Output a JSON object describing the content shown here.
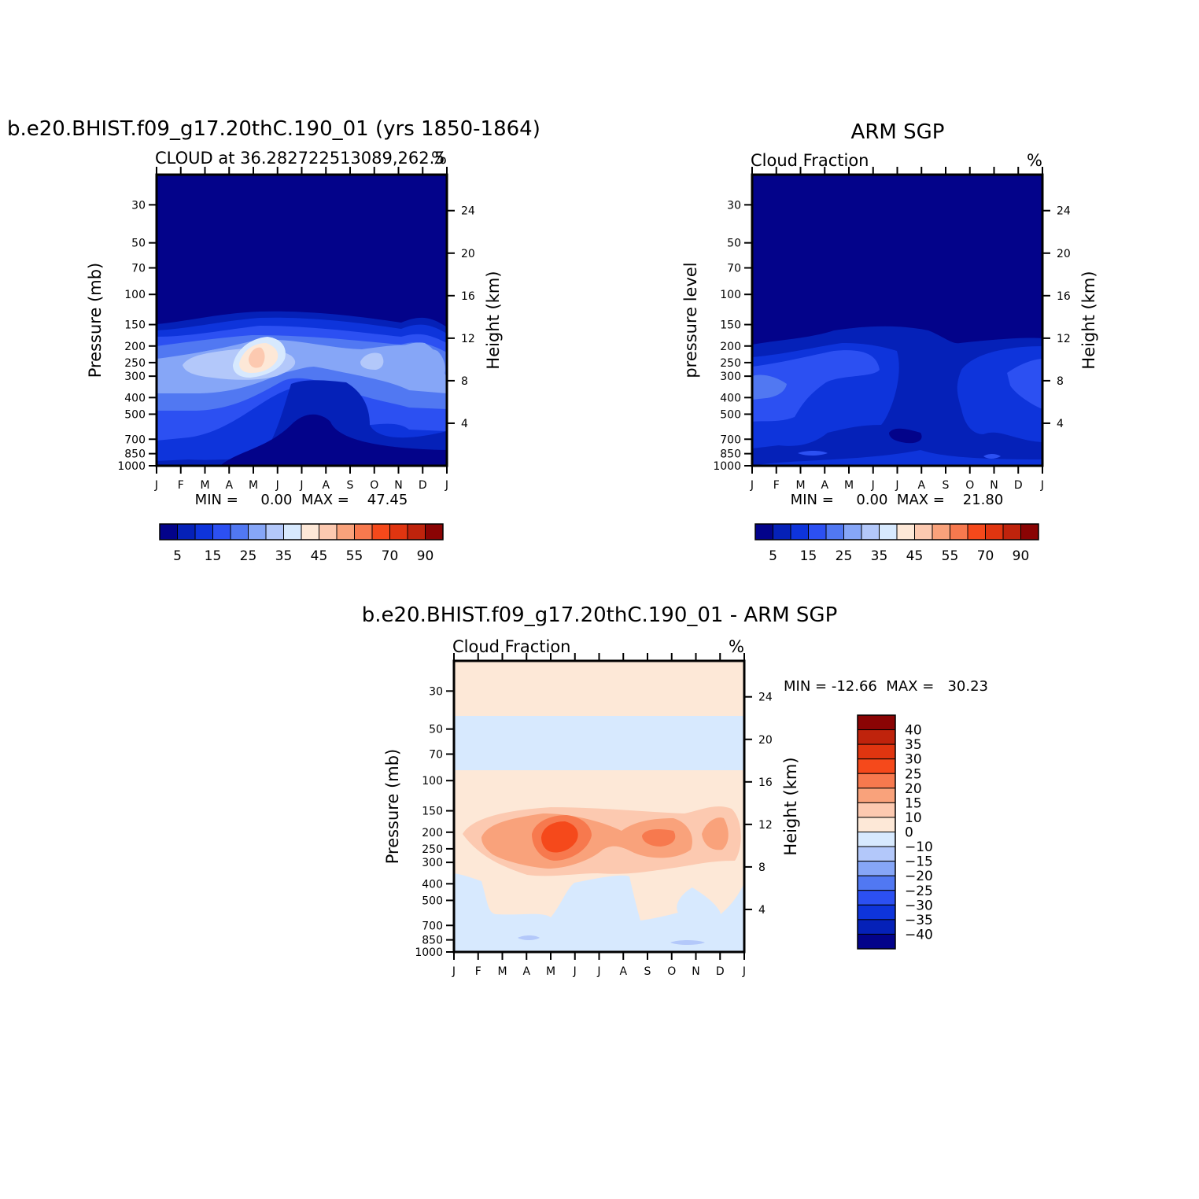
{
  "chart_data": [
    {
      "type": "heatmap",
      "title": "b.e20.BHIST.f09_g17.20thC.190_01 (yrs 1850-1864)",
      "subtitle_left": "CLOUD at 36.282722513089,262.5",
      "units": "%",
      "ylabel": "Pressure (mb)",
      "y2label": "Height (km)",
      "x_ticks": [
        "J",
        "F",
        "M",
        "A",
        "M",
        "J",
        "J",
        "A",
        "S",
        "O",
        "N",
        "D",
        "J"
      ],
      "y_ticks": [
        30,
        50,
        70,
        100,
        150,
        200,
        250,
        300,
        400,
        500,
        700,
        850,
        1000
      ],
      "y2_ticks": [
        24,
        20,
        16,
        12,
        8,
        4
      ],
      "ylim": [
        1000,
        20
      ],
      "min_max_text": "MIN =     0.00  MAX =    47.45",
      "colorbar_labels": [
        5,
        15,
        25,
        35,
        45,
        55,
        70,
        90
      ],
      "colorbar_colors": [
        "#03038a",
        "#0521b8",
        "#0e34db",
        "#2c50f2",
        "#5178f2",
        "#86a6f7",
        "#b3c8fa",
        "#d7e9fe",
        "#fde8d7",
        "#fcc9b0",
        "#f9a27b",
        "#f7794e",
        "#f5491b",
        "#e03510",
        "#bf230c",
        "#8a0404"
      ]
    },
    {
      "type": "heatmap",
      "title": "ARM SGP",
      "subtitle_left": "Cloud Fraction",
      "units": "%",
      "ylabel": "pressure level",
      "y2label": "Height (km)",
      "x_ticks": [
        "J",
        "F",
        "M",
        "A",
        "M",
        "J",
        "J",
        "A",
        "S",
        "O",
        "N",
        "D",
        "J"
      ],
      "y_ticks": [
        30,
        50,
        70,
        100,
        150,
        200,
        250,
        300,
        400,
        500,
        700,
        850,
        1000
      ],
      "y2_ticks": [
        24,
        20,
        16,
        12,
        8,
        4
      ],
      "ylim": [
        1000,
        20
      ],
      "min_max_text": "MIN =     0.00  MAX =    21.80",
      "colorbar_labels": [
        5,
        15,
        25,
        35,
        45,
        55,
        70,
        90
      ],
      "colorbar_colors": [
        "#03038a",
        "#0521b8",
        "#0e34db",
        "#2c50f2",
        "#5178f2",
        "#86a6f7",
        "#b3c8fa",
        "#d7e9fe",
        "#fde8d7",
        "#fcc9b0",
        "#f9a27b",
        "#f7794e",
        "#f5491b",
        "#e03510",
        "#bf230c",
        "#8a0404"
      ]
    },
    {
      "type": "heatmap",
      "title": "b.e20.BHIST.f09_g17.20thC.190_01 - ARM SGP",
      "subtitle_left": "Cloud Fraction",
      "units": "%",
      "ylabel": "Pressure (mb)",
      "y2label": "Height (km)",
      "x_ticks": [
        "J",
        "F",
        "M",
        "A",
        "M",
        "J",
        "J",
        "A",
        "S",
        "O",
        "N",
        "D",
        "J"
      ],
      "y_ticks": [
        30,
        50,
        70,
        100,
        150,
        200,
        250,
        300,
        400,
        500,
        700,
        850,
        1000
      ],
      "y2_ticks": [
        24,
        20,
        16,
        12,
        8,
        4
      ],
      "ylim": [
        1000,
        20
      ],
      "min_max_text": "MIN = -12.66  MAX =   30.23",
      "colorbar_labels": [
        40,
        35,
        30,
        25,
        20,
        15,
        10,
        0,
        -10,
        -15,
        -20,
        -25,
        -30,
        -35,
        -40
      ],
      "colorbar_colors": [
        "#8a0404",
        "#bf230c",
        "#e03510",
        "#f5491b",
        "#f7794e",
        "#f9a27b",
        "#fcc9b0",
        "#fde8d7",
        "#d7e9fe",
        "#b3c8fa",
        "#86a6f7",
        "#5178f2",
        "#2c50f2",
        "#0e34db",
        "#0521b8",
        "#03038a"
      ]
    }
  ]
}
